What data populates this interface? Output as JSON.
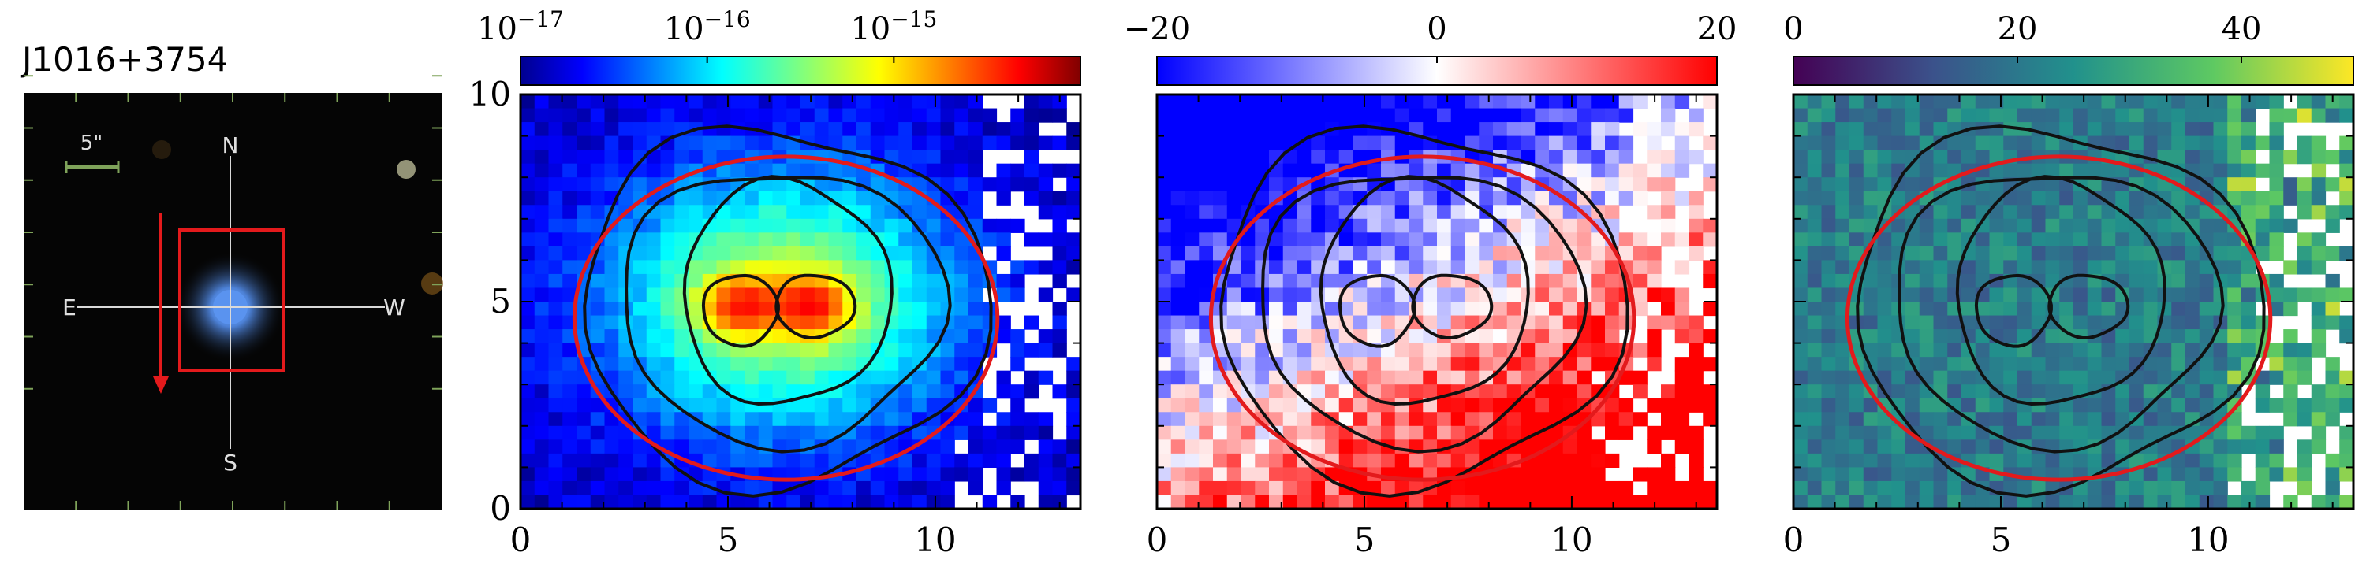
{
  "figure": {
    "object_name": "J1016+3754",
    "thumbnail": {
      "scale_bar": "5\"",
      "compass": {
        "north": "N",
        "south": "S",
        "east": "E",
        "west": "W"
      },
      "colors": {
        "sky": "#050505",
        "galaxy": "#4d82d8",
        "box": "#e31a1c",
        "arrow": "#e31a1c",
        "crosshair": "#d9d9d9",
        "ticks": "#7fa35a"
      }
    }
  },
  "chart_data": [
    {
      "type": "heatmap",
      "panel": "flux",
      "colormap": "jet",
      "log_scale": true,
      "colorbar": {
        "ticks": [
          {
            "base": "10",
            "exp": "−17",
            "value": 1e-17
          },
          {
            "base": "10",
            "exp": "−16",
            "value": 1e-16
          },
          {
            "base": "10",
            "exp": "−15",
            "value": 1e-15
          }
        ],
        "range": [
          1e-17,
          1e-14
        ]
      },
      "xlim": [
        0,
        13.5
      ],
      "ylim": [
        0,
        10
      ],
      "xticks": [
        "0",
        "5",
        "10"
      ],
      "xtick_values": [
        0,
        5,
        10
      ],
      "yticks": [
        "0",
        "5",
        "10"
      ],
      "ytick_values": [
        0,
        5,
        10
      ],
      "ellipse": {
        "center": [
          6.4,
          4.6
        ],
        "semi_axes": [
          5.1,
          3.9
        ],
        "color": "#e31a1c"
      },
      "contours": true,
      "peaks": [
        {
          "x": 5.2,
          "y": 4.9
        },
        {
          "x": 7.1,
          "y": 4.9
        }
      ]
    },
    {
      "type": "heatmap",
      "panel": "velocity",
      "colormap": "bwr",
      "colorbar": {
        "ticks": [
          {
            "label": "−20",
            "value": -20
          },
          {
            "label": "0",
            "value": 0
          },
          {
            "label": "20",
            "value": 20
          }
        ],
        "range": [
          -20,
          20
        ]
      },
      "xlim": [
        0,
        13.5
      ],
      "ylim": [
        0,
        10
      ],
      "xticks": [
        "0",
        "5",
        "10"
      ],
      "xtick_values": [
        0,
        5,
        10
      ],
      "ellipse": {
        "center": [
          6.4,
          4.6
        ],
        "semi_axes": [
          5.1,
          3.9
        ],
        "color": "#e31a1c"
      },
      "contours": true
    },
    {
      "type": "heatmap",
      "panel": "dispersion",
      "colormap": "viridis",
      "colorbar": {
        "ticks": [
          {
            "label": "0",
            "value": 0
          },
          {
            "label": "20",
            "value": 20
          },
          {
            "label": "40",
            "value": 40
          }
        ],
        "range": [
          0,
          50
        ]
      },
      "xlim": [
        0,
        13.5
      ],
      "ylim": [
        0,
        10
      ],
      "xticks": [
        "0",
        "5",
        "10"
      ],
      "xtick_values": [
        0,
        5,
        10
      ],
      "ellipse": {
        "center": [
          6.4,
          4.6
        ],
        "semi_axes": [
          5.1,
          3.9
        ],
        "color": "#e31a1c"
      },
      "contours": true
    }
  ]
}
